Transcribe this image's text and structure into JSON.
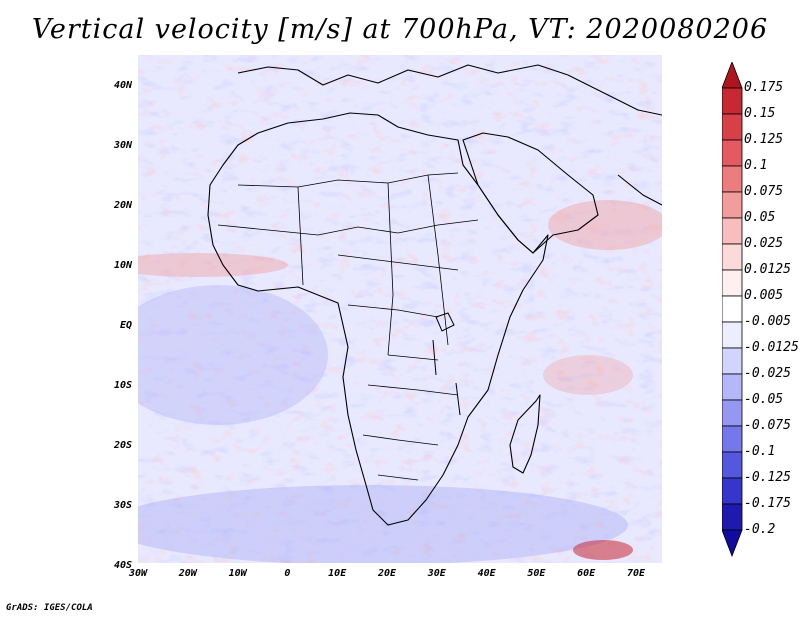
{
  "title": "Vertical velocity [m/s] at 700hPa, VT: 2020080206",
  "credit": "GrADS: IGES/COLA",
  "lat_labels": [
    "40N",
    "30N",
    "20N",
    "10N",
    "EQ",
    "10S",
    "20S",
    "30S",
    "40S"
  ],
  "lon_labels": [
    "30W",
    "20W",
    "10W",
    "0",
    "10E",
    "20E",
    "30E",
    "40E",
    "50E",
    "60E",
    "70E"
  ],
  "colorbar": {
    "levels": [
      "0.175",
      "0.15",
      "0.125",
      "0.1",
      "0.075",
      "0.05",
      "0.025",
      "0.0125",
      "0.005",
      "-0.005",
      "-0.0125",
      "-0.025",
      "-0.05",
      "-0.075",
      "-0.1",
      "-0.125",
      "-0.175",
      "-0.2"
    ],
    "colors": [
      "#b0141e",
      "#c82832",
      "#d84048",
      "#e45a60",
      "#ec7c7e",
      "#f29c9c",
      "#f8bebe",
      "#fcdada",
      "#fef0f0",
      "#ffffff",
      "#ecedff",
      "#d2d4ff",
      "#b4b8fa",
      "#9498f2",
      "#7478ea",
      "#5458de",
      "#3436cc",
      "#1e1ab0",
      "#100ca0"
    ]
  }
}
